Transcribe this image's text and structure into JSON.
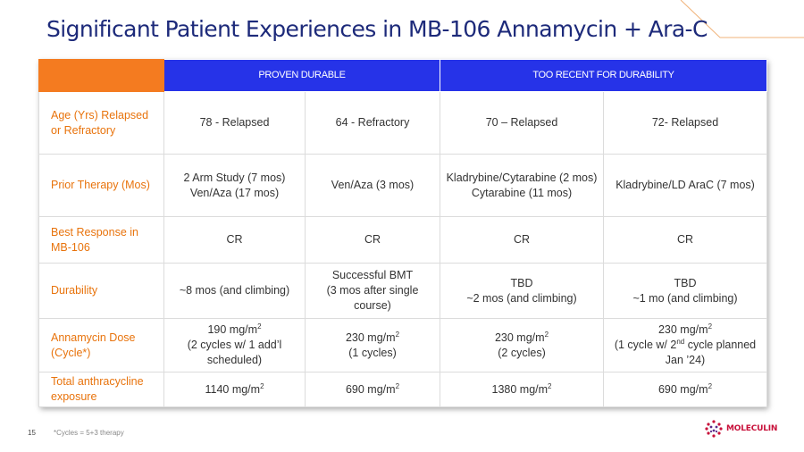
{
  "title": "Significant Patient Experiences in MB-106 Annamycin + Ara-C",
  "header": {
    "group1": "PROVEN DURABLE",
    "group2": "TOO RECENT FOR DURABILITY"
  },
  "rows": [
    {
      "label": [
        "Age (Yrs) Relapsed",
        "or Refractory"
      ],
      "cells": [
        [
          "78 - Relapsed"
        ],
        [
          "64 - Refractory"
        ],
        [
          "70 – Relapsed"
        ],
        [
          "72- Relapsed"
        ]
      ]
    },
    {
      "label": [
        "Prior Therapy (Mos)"
      ],
      "cells": [
        [
          "2 Arm Study (7 mos)",
          "Ven/Aza (17 mos)"
        ],
        [
          "Ven/Aza (3 mos)"
        ],
        [
          "Kladrybine/Cytarabine (2 mos)",
          "Cytarabine (11 mos)"
        ],
        [
          "Kladrybine/LD AraC (7 mos)"
        ]
      ]
    },
    {
      "label": [
        "Best Response in",
        "MB-106"
      ],
      "cells": [
        [
          "CR"
        ],
        [
          "CR"
        ],
        [
          "CR"
        ],
        [
          "CR"
        ]
      ]
    },
    {
      "label": [
        "Durability"
      ],
      "cells": [
        [
          "~8 mos (and climbing)"
        ],
        [
          "Successful BMT",
          "(3 mos after single",
          "course)"
        ],
        [
          "TBD",
          "~2 mos (and climbing)"
        ],
        [
          "TBD",
          "~1 mo (and climbing)"
        ]
      ]
    },
    {
      "label": [
        "Annamycin Dose",
        "(Cycle*)"
      ],
      "cells": [
        [
          "190 mg/m",
          "(2 cycles w/ 1 add’l",
          "scheduled)"
        ],
        [
          "230 mg/m",
          "(1 cycles)"
        ],
        [
          "230 mg/m",
          "(2 cycles)"
        ],
        [
          "230 mg/m",
          "(1 cycle w/ 2",
          "Jan ’24)"
        ]
      ],
      "sup": "2",
      "sup_nd": "nd",
      "cell4_line2_tail": " cycle planned"
    },
    {
      "label": [
        "Total anthracycline",
        "exposure"
      ],
      "cells": [
        [
          "1140 mg/m"
        ],
        [
          "690 mg/m"
        ],
        [
          "1380 mg/m"
        ],
        [
          "690 mg/m"
        ]
      ],
      "sup": "2"
    }
  ],
  "footer": {
    "page_number": "15",
    "note": "*Cycles = 5+3 therapy",
    "logo_name": "MOLECULIN"
  },
  "colors": {
    "title": "#1d2a7a",
    "header_blue": "#2633e8",
    "corner_orange": "#f47b20",
    "row_label_orange": "#e8730c",
    "logo_red": "#c8103a"
  }
}
